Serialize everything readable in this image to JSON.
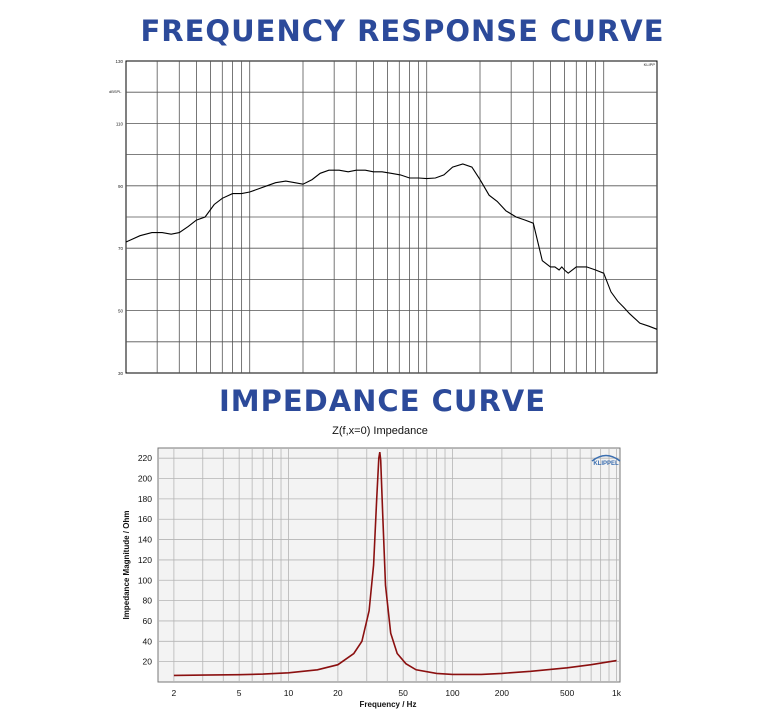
{
  "headings": {
    "frequency": "FREQUENCY RESPONSE CURVE",
    "impedance": "IMPEDANCE CURVE"
  },
  "colors": {
    "heading": "#2c4a9a",
    "fr_line": "#000000",
    "imp_line": "#8b1010",
    "imp_bg": "#f3f3f3"
  },
  "chart_data": [
    {
      "type": "line",
      "title": "",
      "xlabel": "",
      "ylabel": "dBSPL",
      "x_scale": "log",
      "xlim": [
        20,
        20000
      ],
      "ylim": [
        30,
        130
      ],
      "yticks": [
        "130",
        "110",
        "90",
        "70",
        "50",
        "30"
      ],
      "corner_label": "KLIPP",
      "grid": true,
      "series": [
        {
          "x": [
            20,
            24,
            28,
            32,
            36,
            40,
            45,
            50,
            56,
            63,
            70,
            80,
            90,
            100,
            112,
            125,
            140,
            160,
            180,
            200,
            225,
            250,
            280,
            320,
            360,
            400,
            450,
            500,
            560,
            630,
            710,
            800,
            900,
            1000,
            1120,
            1250,
            1400,
            1600,
            1800,
            2000,
            2250,
            2500,
            2800,
            3200,
            3600,
            4000,
            4500,
            5000,
            5300,
            5600,
            5800,
            6000,
            6300,
            7000,
            8000,
            9000,
            10000,
            11000,
            12000,
            13000,
            14000,
            16000,
            18000,
            20000
          ],
          "y": [
            72,
            74,
            75,
            75,
            74.5,
            75,
            77,
            79,
            80,
            84,
            86,
            87.5,
            87.5,
            88,
            89,
            90,
            91,
            91.5,
            91,
            90.5,
            92,
            94,
            95,
            95,
            94.5,
            95,
            95,
            94.5,
            94.5,
            94,
            93.5,
            92.5,
            92.5,
            92.3,
            92.5,
            93.5,
            96,
            97,
            96,
            92,
            87,
            85,
            82,
            80,
            79,
            78,
            66,
            64,
            64,
            63,
            64,
            63,
            62,
            64,
            64,
            63,
            62,
            56,
            53,
            51,
            49,
            46,
            45,
            44
          ]
        }
      ]
    },
    {
      "type": "line",
      "title": "Z(f,x=0) Impedance",
      "xlabel": "Frequency / Hz",
      "ylabel": "Impedance Magnitude / Ohm",
      "x_scale": "log",
      "xlim": [
        1.6,
        1050
      ],
      "ylim": [
        0,
        230
      ],
      "xticks": [
        "2",
        "5",
        "10",
        "20",
        "50",
        "100",
        "200",
        "500",
        "1k"
      ],
      "yticks": [
        "20",
        "40",
        "60",
        "80",
        "100",
        "120",
        "140",
        "160",
        "180",
        "200",
        "220"
      ],
      "brand": "KLIPPEL",
      "grid": true,
      "series": [
        {
          "x": [
            2,
            3,
            5,
            7,
            10,
            15,
            20,
            25,
            28,
            31,
            33,
            34.5,
            35.5,
            36,
            36.5,
            37.5,
            39,
            42,
            46,
            52,
            60,
            80,
            100,
            150,
            200,
            300,
            500,
            700,
            1000
          ],
          "y": [
            6.5,
            6.8,
            7.2,
            7.8,
            9,
            12,
            17,
            28,
            40,
            70,
            115,
            180,
            220,
            226,
            218,
            165,
            95,
            48,
            28,
            18,
            12,
            8.5,
            7.5,
            7.5,
            8.5,
            10.5,
            14,
            17,
            21
          ]
        }
      ]
    }
  ]
}
